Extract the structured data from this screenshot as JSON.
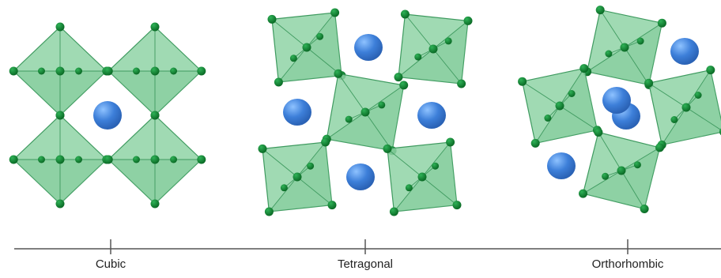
{
  "labels": {
    "cubic": "Cubic",
    "tetragonal": "Tetragonal",
    "orthorhombic": "Orthorhombic"
  },
  "colors": {
    "octahedron_fill": "#8fd4a6",
    "octahedron_fill_dark": "#6cc08a",
    "octahedron_edge": "#3e9a5f",
    "anion": "#0b7a2c",
    "cation": "#3d7fd9",
    "cation_light": "#6aa7ef",
    "axis": "#555555"
  },
  "icons": {
    "octahedron": "octahedron-icon",
    "cation": "cation-sphere-icon"
  }
}
